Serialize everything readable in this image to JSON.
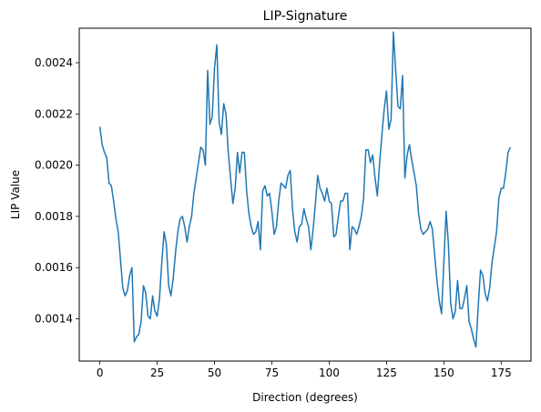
{
  "chart_data": {
    "type": "line",
    "title": "LIP-Signature",
    "xlabel": "Direction (degrees)",
    "ylabel": "LIP Value",
    "xlim": [
      -9,
      188
    ],
    "ylim": [
      0.001235,
      0.002535
    ],
    "xticks": [
      0,
      25,
      50,
      75,
      100,
      125,
      150,
      175
    ],
    "yticks": [
      0.0014,
      0.0016,
      0.0018,
      0.002,
      0.0022,
      0.0024
    ],
    "xtick_labels": [
      "0",
      "25",
      "50",
      "75",
      "100",
      "125",
      "150",
      "175"
    ],
    "ytick_labels": [
      "0.0014",
      "0.0016",
      "0.0018",
      "0.0020",
      "0.0022",
      "0.0024"
    ],
    "grid": false,
    "legend": false,
    "series": [
      {
        "color": "#1f77b4",
        "x": [
          0,
          1,
          2,
          3,
          4,
          5,
          6,
          7,
          8,
          9,
          10,
          11,
          12,
          13,
          14,
          15,
          16,
          17,
          18,
          19,
          20,
          21,
          22,
          23,
          24,
          25,
          26,
          27,
          28,
          29,
          30,
          31,
          32,
          33,
          34,
          35,
          36,
          37,
          38,
          39,
          40,
          41,
          42,
          43,
          44,
          45,
          46,
          47,
          48,
          49,
          50,
          51,
          52,
          53,
          54,
          55,
          56,
          57,
          58,
          59,
          60,
          61,
          62,
          63,
          64,
          65,
          66,
          67,
          68,
          69,
          70,
          71,
          72,
          73,
          74,
          75,
          76,
          77,
          78,
          79,
          80,
          81,
          82,
          83,
          84,
          85,
          86,
          87,
          88,
          89,
          90,
          91,
          92,
          93,
          94,
          95,
          96,
          97,
          98,
          99,
          100,
          101,
          102,
          103,
          104,
          105,
          106,
          107,
          108,
          109,
          110,
          111,
          112,
          113,
          114,
          115,
          116,
          117,
          118,
          119,
          120,
          121,
          122,
          123,
          124,
          125,
          126,
          127,
          128,
          129,
          130,
          131,
          132,
          133,
          134,
          135,
          136,
          137,
          138,
          139,
          140,
          141,
          142,
          143,
          144,
          145,
          146,
          147,
          148,
          149,
          150,
          151,
          152,
          153,
          154,
          155,
          156,
          157,
          158,
          159,
          160,
          161,
          162,
          163,
          164,
          165,
          166,
          167,
          168,
          169,
          170,
          171,
          172,
          173,
          174,
          175,
          176,
          177,
          178,
          179
        ],
        "values": [
          0.00215,
          0.00208,
          0.00205,
          0.00203,
          0.00193,
          0.00192,
          0.00186,
          0.00179,
          0.00174,
          0.00163,
          0.00152,
          0.00149,
          0.00151,
          0.00157,
          0.0016,
          0.00131,
          0.00133,
          0.00134,
          0.00139,
          0.00153,
          0.0015,
          0.00141,
          0.0014,
          0.00149,
          0.00143,
          0.00141,
          0.00148,
          0.00162,
          0.00174,
          0.00169,
          0.00153,
          0.00149,
          0.00156,
          0.00166,
          0.00174,
          0.00179,
          0.0018,
          0.00176,
          0.0017,
          0.00176,
          0.0018,
          0.00189,
          0.00195,
          0.00201,
          0.00207,
          0.00206,
          0.002,
          0.00237,
          0.00216,
          0.00219,
          0.00238,
          0.00247,
          0.00217,
          0.00212,
          0.00224,
          0.0022,
          0.00205,
          0.00195,
          0.00185,
          0.00191,
          0.00205,
          0.00197,
          0.00205,
          0.00205,
          0.0019,
          0.00181,
          0.00176,
          0.00173,
          0.00174,
          0.00178,
          0.00167,
          0.0019,
          0.00192,
          0.00188,
          0.00189,
          0.00182,
          0.00173,
          0.00176,
          0.00186,
          0.00193,
          0.00192,
          0.00191,
          0.00196,
          0.00198,
          0.00183,
          0.00174,
          0.0017,
          0.00176,
          0.00177,
          0.00183,
          0.00179,
          0.00176,
          0.00167,
          0.00175,
          0.00185,
          0.00196,
          0.00191,
          0.00189,
          0.00186,
          0.00191,
          0.00186,
          0.00185,
          0.00172,
          0.00173,
          0.0018,
          0.00186,
          0.00186,
          0.00189,
          0.00189,
          0.00167,
          0.00176,
          0.00175,
          0.00173,
          0.00176,
          0.0018,
          0.00187,
          0.00206,
          0.00206,
          0.00201,
          0.00204,
          0.00195,
          0.00188,
          0.00201,
          0.00212,
          0.00222,
          0.00229,
          0.00214,
          0.00218,
          0.00252,
          0.00237,
          0.00223,
          0.00222,
          0.00235,
          0.00195,
          0.00204,
          0.00208,
          0.00202,
          0.00197,
          0.00192,
          0.00181,
          0.00175,
          0.00173,
          0.00174,
          0.00175,
          0.00178,
          0.00175,
          0.00165,
          0.00155,
          0.00147,
          0.00142,
          0.00162,
          0.00182,
          0.00169,
          0.00146,
          0.0014,
          0.00143,
          0.00155,
          0.00144,
          0.00144,
          0.00148,
          0.00153,
          0.00139,
          0.00136,
          0.00132,
          0.00129,
          0.00145,
          0.00159,
          0.00157,
          0.0015,
          0.00147,
          0.00152,
          0.00162,
          0.00168,
          0.00174,
          0.00187,
          0.00191,
          0.00191,
          0.00197,
          0.00205,
          0.00207
        ]
      }
    ]
  }
}
